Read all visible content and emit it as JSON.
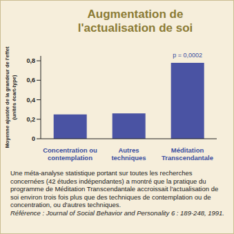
{
  "chart_data": {
    "type": "bar",
    "title": "Augmentation de l'actualisation de soi",
    "y_label": "Moyenne ajustée de la grandeur de l'effet (unités écart-type)",
    "categories": [
      "Concentration ou contemplation",
      "Autres techniques",
      "Méditation Transcendantale"
    ],
    "values": [
      0.25,
      0.26,
      0.78
    ],
    "color": "#4a53a3",
    "ylim": [
      0,
      0.85
    ],
    "yticks": [
      0,
      {
        "value": 0.2,
        "label": "0,2"
      },
      {
        "value": 0.4,
        "label": "0,4"
      },
      {
        "value": 0.6,
        "label": "0,6"
      },
      {
        "value": 0.8,
        "label": "0,8"
      }
    ],
    "grid": false,
    "annotations": [
      {
        "text": "p = 0,0002",
        "category": "Méditation Transcendantale"
      }
    ],
    "caption": "Une méta-analyse statistique portant sur toutes les recherches concernées (42 études indépendantes) a montré que la pratique du programme de Méditation Transcendantale accroissait l'actualisation de soi environ trois fois plus que des techniques de contemplation ou de concentration, ou d'autres techniques.",
    "reference": "Référence : Journal of Social Behavior and Personality 6 : 189-248, 1991."
  }
}
